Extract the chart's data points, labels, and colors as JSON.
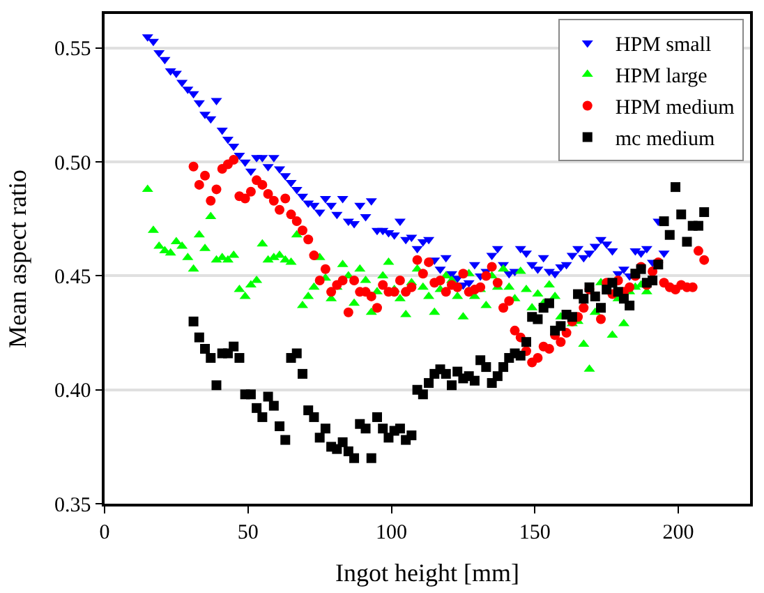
{
  "chart_data": {
    "type": "scatter",
    "xlabel": "Ingot height [mm]",
    "ylabel": "Mean aspect ratio",
    "xlim": [
      0,
      225
    ],
    "xticks": [
      0,
      50,
      100,
      150,
      200
    ],
    "ylim": [
      0.35,
      0.565
    ],
    "yticks": [
      {
        "value": 0.35,
        "label": "0.35"
      },
      {
        "value": 0.4,
        "label": "0.40"
      },
      {
        "value": 0.45,
        "label": "0.45"
      },
      {
        "value": 0.5,
        "label": "0.50"
      },
      {
        "value": 0.55,
        "label": "0.55"
      }
    ],
    "grid": "y",
    "legend": "top right",
    "series": [
      {
        "name": "HPM small",
        "color": "#0000ff",
        "marker": "triangle-down",
        "x": [
          15,
          17,
          19,
          21,
          23,
          25,
          27,
          29,
          31,
          33,
          35,
          37,
          39,
          41,
          43,
          45,
          47,
          49,
          51,
          53,
          55,
          57,
          59,
          61,
          63,
          65,
          67,
          69,
          71,
          73,
          75,
          77,
          79,
          81,
          83,
          85,
          87,
          89,
          91,
          93,
          95,
          97,
          99,
          101,
          103,
          105,
          107,
          109,
          111,
          113,
          115,
          117,
          119,
          121,
          123,
          125,
          127,
          129,
          131,
          133,
          135,
          137,
          139,
          141,
          143,
          145,
          147,
          149,
          151,
          153,
          155,
          157,
          159,
          161,
          163,
          165,
          167,
          169,
          171,
          173,
          175,
          177,
          179,
          181,
          183,
          185,
          187,
          189,
          191,
          193,
          195
        ],
        "values": [
          0.555,
          0.553,
          0.548,
          0.545,
          0.54,
          0.539,
          0.535,
          0.532,
          0.53,
          0.526,
          0.521,
          0.519,
          0.527,
          0.514,
          0.51,
          0.507,
          0.503,
          0.5,
          0.496,
          0.502,
          0.502,
          0.498,
          0.502,
          0.497,
          0.494,
          0.491,
          0.488,
          0.485,
          0.482,
          0.481,
          0.478,
          0.484,
          0.481,
          0.477,
          0.484,
          0.474,
          0.473,
          0.481,
          0.476,
          0.483,
          0.47,
          0.47,
          0.469,
          0.468,
          0.474,
          0.466,
          0.467,
          0.462,
          0.465,
          0.466,
          0.457,
          0.453,
          0.458,
          0.451,
          0.449,
          0.446,
          0.447,
          0.455,
          0.45,
          0.452,
          0.459,
          0.462,
          0.455,
          0.451,
          0.452,
          0.462,
          0.46,
          0.455,
          0.453,
          0.458,
          0.452,
          0.451,
          0.454,
          0.455,
          0.459,
          0.462,
          0.458,
          0.46,
          0.463,
          0.466,
          0.464,
          0.461,
          0.451,
          0.453,
          0.45,
          0.461,
          0.46,
          0.462,
          0.456,
          0.474,
          0.46
        ]
      },
      {
        "name": "HPM large",
        "color": "#00ff00",
        "marker": "triangle",
        "x": [
          15,
          17,
          19,
          21,
          23,
          25,
          27,
          29,
          31,
          33,
          35,
          37,
          39,
          41,
          43,
          45,
          47,
          49,
          51,
          53,
          55,
          57,
          59,
          61,
          63,
          65,
          67,
          69,
          71,
          73,
          75,
          77,
          79,
          81,
          83,
          85,
          87,
          89,
          91,
          93,
          95,
          97,
          99,
          101,
          103,
          105,
          107,
          109,
          111,
          113,
          115,
          117,
          119,
          121,
          123,
          125,
          127,
          129,
          131,
          133,
          135,
          137,
          139,
          141,
          143,
          145,
          147,
          149,
          151,
          153,
          155,
          157,
          159,
          161,
          163,
          165,
          167,
          169,
          171,
          173,
          175,
          177,
          179,
          181,
          183,
          185,
          187,
          189
        ],
        "values": [
          0.488,
          0.47,
          0.463,
          0.461,
          0.46,
          0.465,
          0.463,
          0.458,
          0.453,
          0.468,
          0.462,
          0.476,
          0.457,
          0.458,
          0.457,
          0.459,
          0.444,
          0.441,
          0.446,
          0.448,
          0.464,
          0.457,
          0.458,
          0.459,
          0.457,
          0.456,
          0.468,
          0.437,
          0.441,
          0.445,
          0.458,
          0.449,
          0.44,
          0.445,
          0.455,
          0.45,
          0.438,
          0.453,
          0.448,
          0.434,
          0.443,
          0.45,
          0.456,
          0.444,
          0.44,
          0.433,
          0.447,
          0.453,
          0.445,
          0.441,
          0.434,
          0.444,
          0.45,
          0.448,
          0.441,
          0.432,
          0.451,
          0.441,
          0.444,
          0.437,
          0.45,
          0.445,
          0.453,
          0.445,
          0.44,
          0.452,
          0.444,
          0.436,
          0.442,
          0.438,
          0.446,
          0.441,
          0.432,
          null,
          0.429,
          0.43,
          0.42,
          0.409,
          0.434,
          0.447,
          null,
          0.424,
          0.44,
          0.429,
          0.443,
          0.445,
          0.446,
          0.443
        ]
      },
      {
        "name": "HPM medium",
        "color": "#ff0000",
        "marker": "circle",
        "x": [
          31,
          33,
          35,
          37,
          39,
          41,
          43,
          45,
          47,
          49,
          51,
          53,
          55,
          57,
          59,
          61,
          63,
          65,
          67,
          69,
          71,
          73,
          75,
          77,
          79,
          81,
          83,
          85,
          87,
          89,
          91,
          93,
          95,
          97,
          99,
          101,
          103,
          105,
          107,
          109,
          111,
          113,
          115,
          117,
          119,
          121,
          123,
          125,
          127,
          129,
          131,
          133,
          135,
          137,
          139,
          141,
          143,
          145,
          147,
          149,
          151,
          153,
          155,
          157,
          159,
          161,
          163,
          165,
          167,
          169,
          171,
          173,
          175,
          177,
          179,
          181,
          183,
          185,
          187,
          189,
          191,
          193,
          195,
          197,
          199,
          201,
          203,
          205,
          207,
          209
        ],
        "values": [
          0.498,
          0.49,
          0.494,
          0.483,
          0.488,
          0.497,
          0.499,
          0.501,
          0.485,
          0.484,
          0.487,
          0.492,
          0.49,
          0.486,
          0.483,
          0.479,
          0.484,
          0.477,
          0.474,
          0.47,
          0.466,
          0.459,
          0.448,
          0.453,
          0.443,
          0.446,
          0.448,
          0.434,
          0.448,
          0.443,
          0.443,
          0.441,
          0.436,
          0.446,
          0.443,
          0.443,
          0.448,
          0.443,
          0.445,
          0.457,
          0.451,
          0.456,
          0.447,
          0.448,
          0.443,
          0.446,
          0.445,
          0.451,
          0.443,
          0.444,
          0.445,
          0.45,
          0.454,
          0.447,
          0.436,
          0.439,
          0.426,
          0.423,
          0.417,
          0.412,
          0.414,
          0.419,
          0.418,
          0.424,
          0.421,
          0.425,
          0.43,
          0.432,
          0.436,
          0.444,
          null,
          0.431,
          0.447,
          0.442,
          0.448,
          0.443,
          0.445,
          0.45,
          0.454,
          0.446,
          0.452,
          0.456,
          0.447,
          0.445,
          0.444,
          0.446,
          0.445,
          0.445,
          0.461,
          0.457
        ]
      },
      {
        "name": "mc medium",
        "color": "#000000",
        "marker": "square",
        "x": [
          31,
          33,
          35,
          37,
          39,
          41,
          43,
          45,
          47,
          49,
          51,
          53,
          55,
          57,
          59,
          61,
          63,
          65,
          67,
          69,
          71,
          73,
          75,
          77,
          79,
          81,
          83,
          85,
          87,
          89,
          91,
          93,
          95,
          97,
          99,
          101,
          103,
          105,
          107,
          109,
          111,
          113,
          115,
          117,
          119,
          121,
          123,
          125,
          127,
          129,
          131,
          133,
          135,
          137,
          139,
          141,
          143,
          145,
          147,
          149,
          151,
          153,
          155,
          157,
          159,
          161,
          163,
          165,
          167,
          169,
          171,
          173,
          175,
          177,
          179,
          181,
          183,
          185,
          187,
          189,
          191,
          193,
          195,
          197,
          199,
          201,
          203,
          205,
          207,
          209
        ],
        "values": [
          0.43,
          0.423,
          0.418,
          0.414,
          0.402,
          0.416,
          0.416,
          0.419,
          0.414,
          0.398,
          0.398,
          0.392,
          0.388,
          0.397,
          0.393,
          0.384,
          0.378,
          0.414,
          0.416,
          0.407,
          0.391,
          0.388,
          0.379,
          0.383,
          0.375,
          0.374,
          0.377,
          0.373,
          0.37,
          0.385,
          0.383,
          0.37,
          0.388,
          0.383,
          0.379,
          0.382,
          0.383,
          0.378,
          0.38,
          0.4,
          0.398,
          0.403,
          0.407,
          0.409,
          0.407,
          0.402,
          0.408,
          0.405,
          0.406,
          0.404,
          0.413,
          0.41,
          0.403,
          0.406,
          0.41,
          0.414,
          0.416,
          0.415,
          0.421,
          0.432,
          0.431,
          0.436,
          0.438,
          0.426,
          0.428,
          0.433,
          0.432,
          0.442,
          0.44,
          0.445,
          0.441,
          0.436,
          0.444,
          0.447,
          0.443,
          0.44,
          0.437,
          0.451,
          0.453,
          0.447,
          0.448,
          0.455,
          0.474,
          0.468,
          0.489,
          0.477,
          0.465,
          0.472,
          0.472,
          0.478
        ]
      }
    ]
  }
}
